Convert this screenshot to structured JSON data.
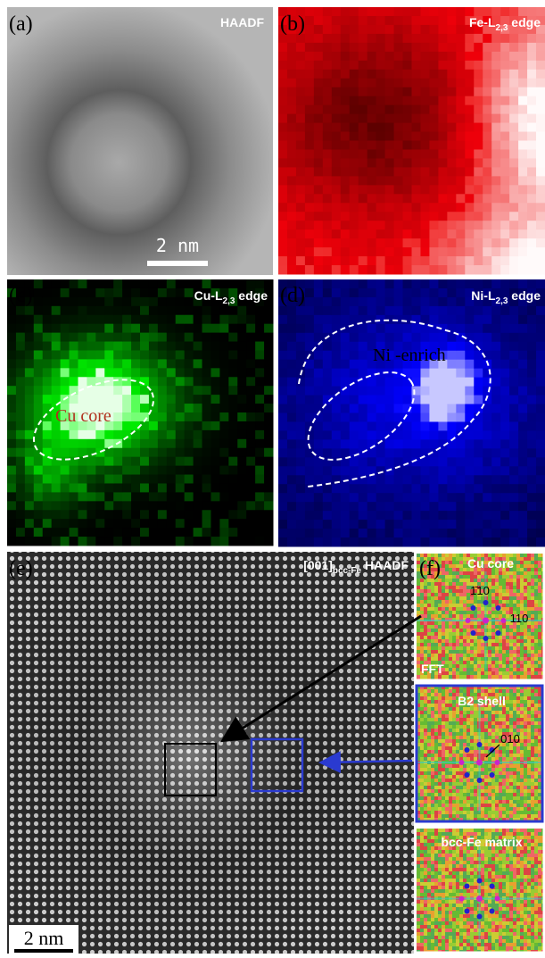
{
  "panels": [
    {
      "label": "(a)",
      "title": "HAADF",
      "scale_bar": "2 nm"
    },
    {
      "label": "(b)",
      "title": {
        "main": "Fe-L",
        "sub": "2,3",
        "rest": " edge"
      }
    },
    {
      "label": "(c)",
      "title": {
        "main": "Cu-L",
        "sub": "2,3",
        "rest": " edge"
      },
      "annotation": "Cu core"
    },
    {
      "label": "(d)",
      "title": {
        "main": "Ni-L",
        "sub": "2,3",
        "rest": " edge"
      },
      "annotation": "Ni -enrich"
    },
    {
      "label": "(e)",
      "title": {
        "main": "[001]",
        "sub": "bcc-Fe",
        "rest": " HAADF"
      },
      "scale_bar": "2 nm"
    },
    {
      "label": "(f)",
      "insets": [
        {
          "title": "Cu core",
          "indices": [
            "1̄10",
            "110"
          ],
          "note": "FFT"
        },
        {
          "title": "B2 shell",
          "indices": [
            "010"
          ]
        },
        {
          "title": "bcc-Fe matrix"
        }
      ]
    }
  ]
}
